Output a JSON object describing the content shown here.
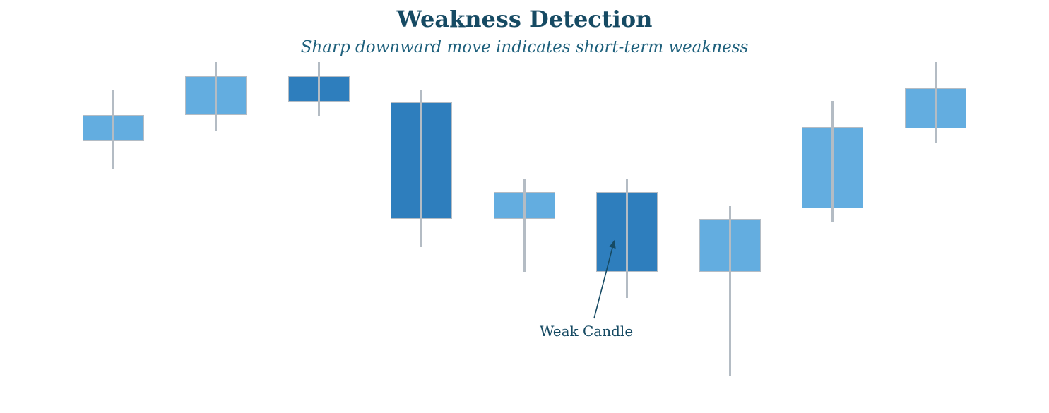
{
  "chart_data": {
    "type": "candlestick",
    "title": "Weakness Detection",
    "subtitle": "Sharp downward move indicates short-term weakness",
    "x": [
      1,
      2,
      3,
      4,
      5,
      6,
      7,
      8,
      9
    ],
    "candles": [
      {
        "open": 88.8,
        "close": 92.5,
        "high": 96.1,
        "low": 84.8,
        "direction": "up"
      },
      {
        "open": 92.5,
        "close": 98.0,
        "high": 100.0,
        "low": 90.3,
        "direction": "up"
      },
      {
        "open": 98.0,
        "close": 94.4,
        "high": 100.0,
        "low": 92.3,
        "direction": "down"
      },
      {
        "open": 94.3,
        "close": 77.8,
        "high": 96.1,
        "low": 73.8,
        "direction": "down"
      },
      {
        "open": 77.8,
        "close": 81.6,
        "high": 83.5,
        "low": 70.3,
        "direction": "up"
      },
      {
        "open": 81.6,
        "close": 70.3,
        "high": 83.5,
        "low": 66.6,
        "direction": "down"
      },
      {
        "open": 70.3,
        "close": 77.8,
        "high": 79.6,
        "low": 55.5,
        "direction": "up"
      },
      {
        "open": 79.3,
        "close": 90.8,
        "high": 94.5,
        "low": 77.3,
        "direction": "up"
      },
      {
        "open": 90.6,
        "close": 96.3,
        "high": 100.0,
        "low": 88.6,
        "direction": "up"
      }
    ],
    "annotation": {
      "label": "Weak Candle",
      "target_candle": 6
    },
    "colors": {
      "up": "#63ade0",
      "down": "#2e7ebd",
      "wick": "#b4bcc4",
      "title": "#164a63",
      "subtitle": "#1e607c",
      "annotation": "#164a63"
    },
    "axes": {
      "visible": false,
      "grid": false,
      "ylim": [
        55,
        101
      ],
      "legend": "none"
    }
  }
}
